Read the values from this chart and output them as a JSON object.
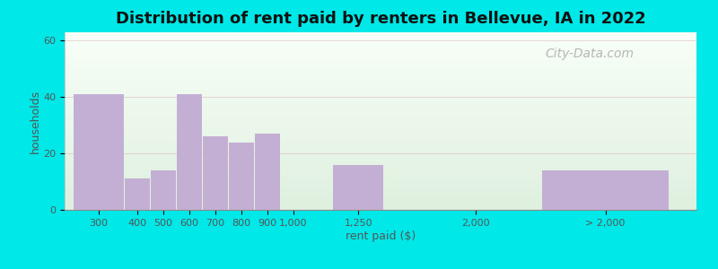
{
  "title": "Distribution of rent paid by renters in Bellevue, IA in 2022",
  "xlabel": "rent paid ($)",
  "ylabel": "households",
  "bar_color": "#c4afd4",
  "background_outer": "#00e8e8",
  "background_gradient_top": "#dff0df",
  "background_gradient_bottom": "#f8fff8",
  "categories": [
    "300",
    "400",
    "500",
    "600",
    "700",
    "800",
    "900",
    "1,000",
    "1,250",
    "2,000",
    "> 2,000"
  ],
  "values": [
    41,
    11,
    14,
    41,
    26,
    24,
    27,
    0,
    16,
    0,
    14
  ],
  "yticks": [
    0,
    20,
    40,
    60
  ],
  "ylim": [
    0,
    63
  ],
  "title_fontsize": 13,
  "axis_label_fontsize": 9,
  "tick_fontsize": 8,
  "watermark": "City-Data.com",
  "positions": [
    0,
    2,
    3,
    4,
    5,
    6,
    7,
    8,
    10,
    15,
    18
  ],
  "widths": [
    2,
    1,
    1,
    1,
    1,
    1,
    1,
    1,
    2,
    1,
    5
  ]
}
